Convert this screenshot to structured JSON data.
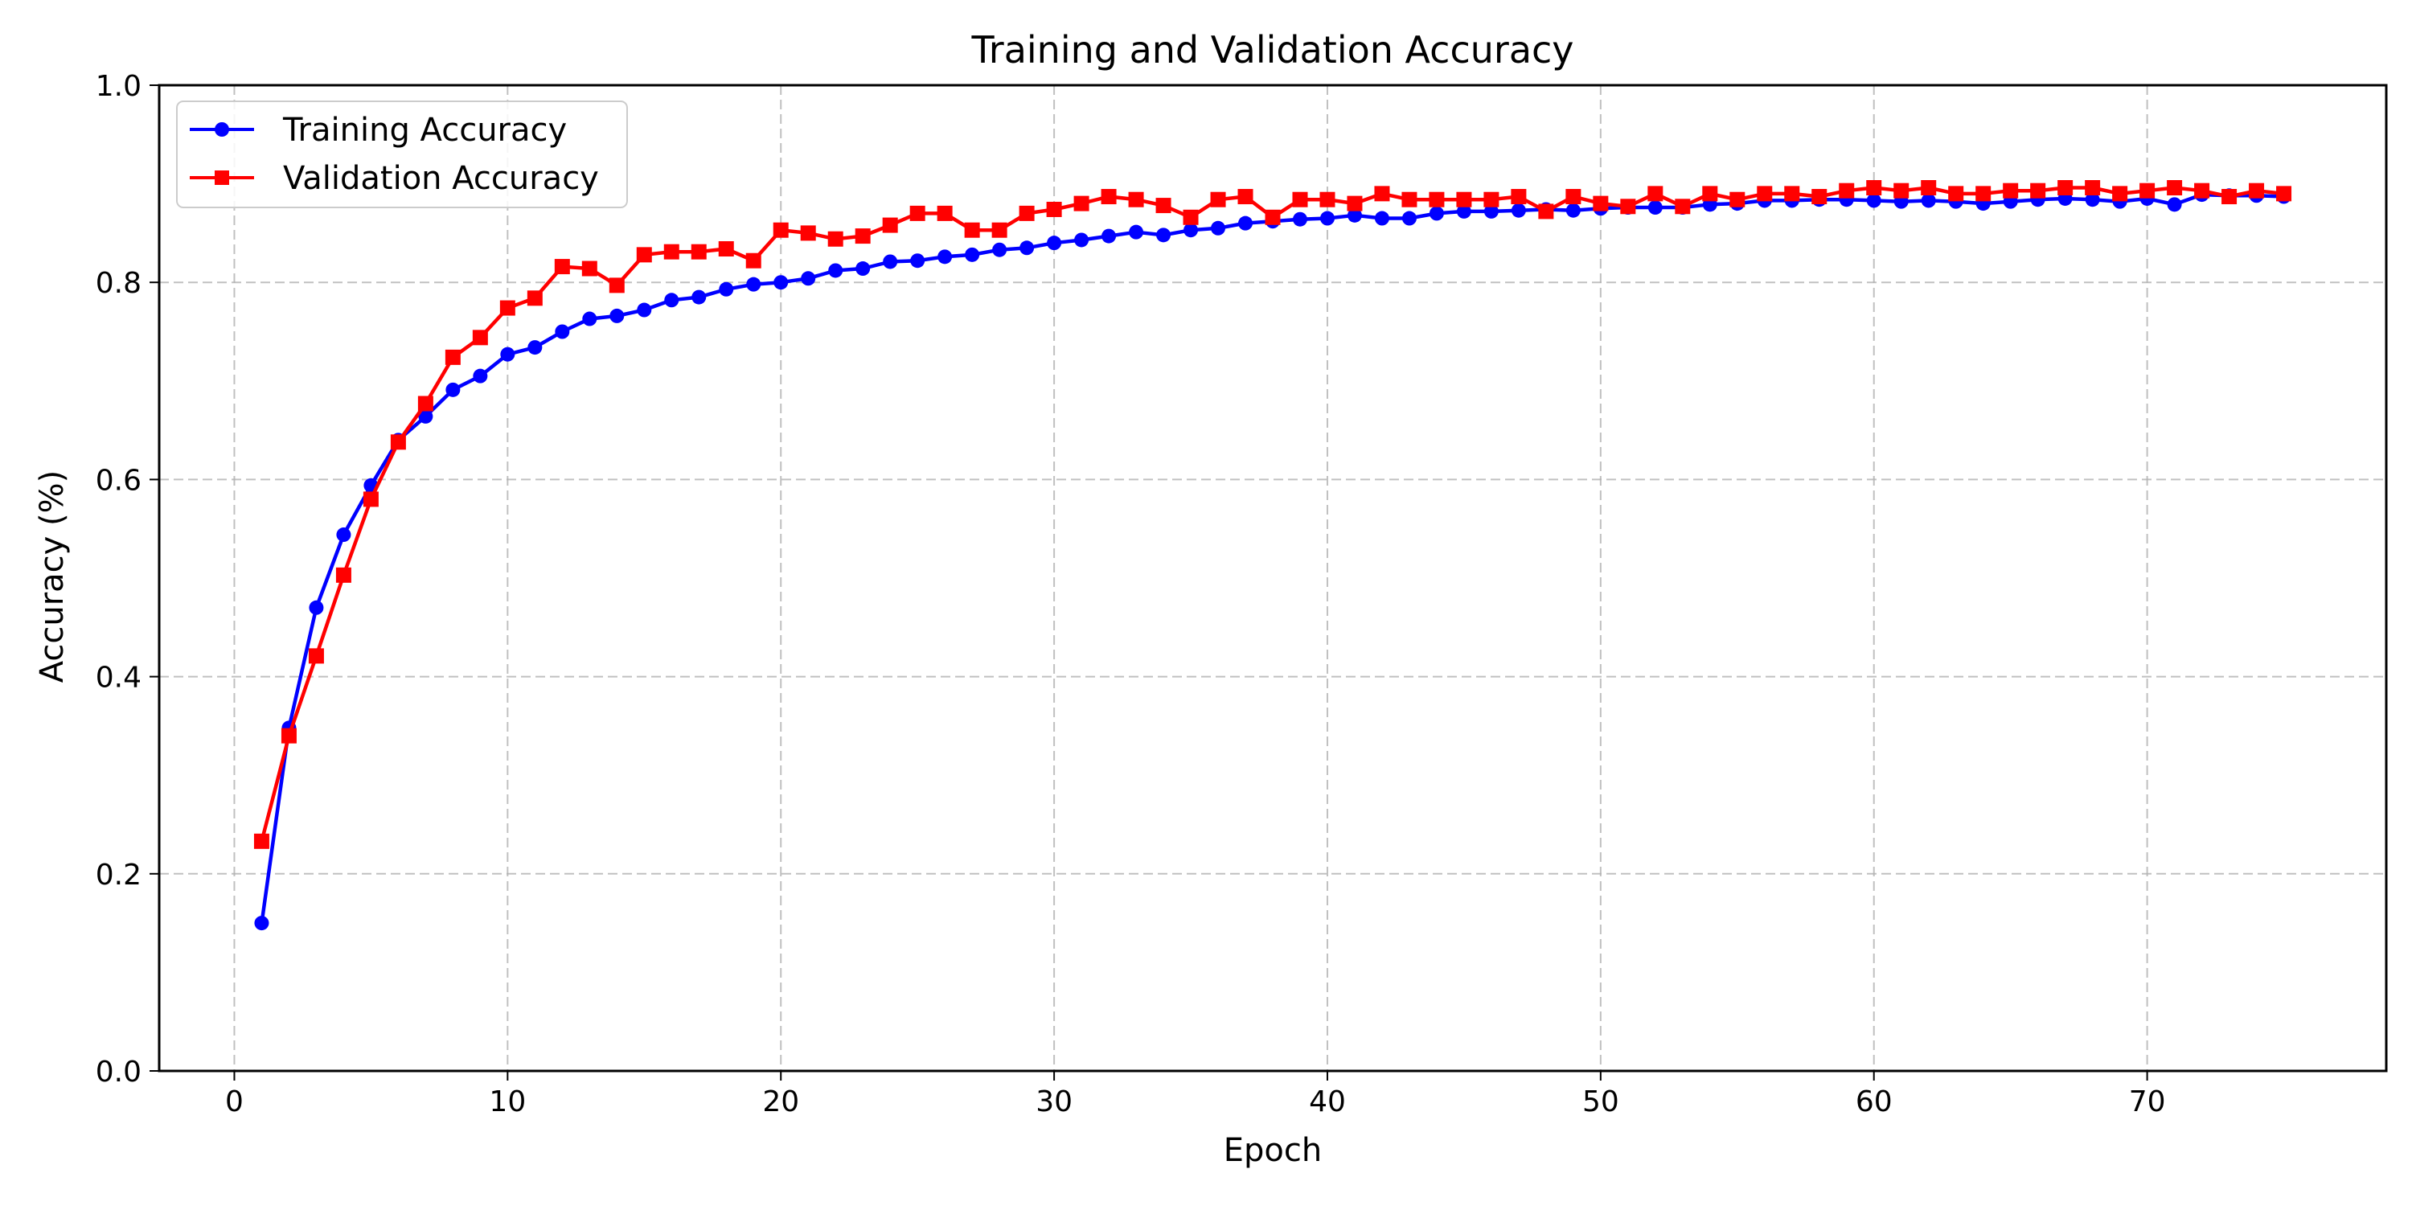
{
  "chart_data": {
    "type": "line",
    "title": "Training and Validation Accuracy",
    "xlabel": "Epoch",
    "ylabel": "Accuracy (%)",
    "xlim": [
      -2.75,
      78.75
    ],
    "ylim": [
      0.0,
      1.0
    ],
    "xticks": [
      "0",
      "10",
      "20",
      "30",
      "40",
      "50",
      "60",
      "70"
    ],
    "yticks": [
      "0.0",
      "0.2",
      "0.4",
      "0.6",
      "0.8",
      "1.0"
    ],
    "grid": true,
    "legend_position": "top-left",
    "x": [
      1,
      2,
      3,
      4,
      5,
      6,
      7,
      8,
      9,
      10,
      11,
      12,
      13,
      14,
      15,
      16,
      17,
      18,
      19,
      20,
      21,
      22,
      23,
      24,
      25,
      26,
      27,
      28,
      29,
      30,
      31,
      32,
      33,
      34,
      35,
      36,
      37,
      38,
      39,
      40,
      41,
      42,
      43,
      44,
      45,
      46,
      47,
      48,
      49,
      50,
      51,
      52,
      53,
      54,
      55,
      56,
      57,
      58,
      59,
      60,
      61,
      62,
      63,
      64,
      65,
      66,
      67,
      68,
      69,
      70,
      71,
      72,
      73,
      74,
      75
    ],
    "series": [
      {
        "name": "Training Accuracy",
        "color": "#0000ff",
        "marker": "circle",
        "values": [
          0.15,
          0.348,
          0.47,
          0.544,
          0.594,
          0.64,
          0.664,
          0.691,
          0.705,
          0.727,
          0.734,
          0.75,
          0.763,
          0.766,
          0.772,
          0.782,
          0.785,
          0.793,
          0.798,
          0.8,
          0.804,
          0.812,
          0.814,
          0.821,
          0.822,
          0.826,
          0.828,
          0.833,
          0.835,
          0.84,
          0.843,
          0.847,
          0.851,
          0.848,
          0.853,
          0.855,
          0.86,
          0.862,
          0.864,
          0.865,
          0.868,
          0.865,
          0.865,
          0.87,
          0.872,
          0.872,
          0.873,
          0.874,
          0.873,
          0.875,
          0.876,
          0.876,
          0.876,
          0.879,
          0.88,
          0.883,
          0.883,
          0.884,
          0.884,
          0.883,
          0.882,
          0.883,
          0.882,
          0.88,
          0.882,
          0.884,
          0.885,
          0.884,
          0.882,
          0.885,
          0.879,
          0.889,
          0.888,
          0.888,
          0.887
        ]
      },
      {
        "name": "Validation Accuracy",
        "color": "#ff0000",
        "marker": "square",
        "values": [
          0.233,
          0.34,
          0.421,
          0.503,
          0.58,
          0.638,
          0.677,
          0.724,
          0.744,
          0.774,
          0.784,
          0.816,
          0.814,
          0.797,
          0.828,
          0.831,
          0.831,
          0.834,
          0.822,
          0.853,
          0.85,
          0.844,
          0.847,
          0.858,
          0.87,
          0.87,
          0.853,
          0.853,
          0.87,
          0.874,
          0.88,
          0.887,
          0.884,
          0.878,
          0.866,
          0.884,
          0.887,
          0.866,
          0.884,
          0.884,
          0.88,
          0.89,
          0.884,
          0.884,
          0.884,
          0.884,
          0.887,
          0.872,
          0.887,
          0.88,
          0.877,
          0.89,
          0.877,
          0.89,
          0.884,
          0.89,
          0.89,
          0.887,
          0.893,
          0.896,
          0.893,
          0.896,
          0.89,
          0.89,
          0.893,
          0.893,
          0.896,
          0.896,
          0.89,
          0.893,
          0.896,
          0.893,
          0.887,
          0.893,
          0.89
        ]
      }
    ]
  }
}
